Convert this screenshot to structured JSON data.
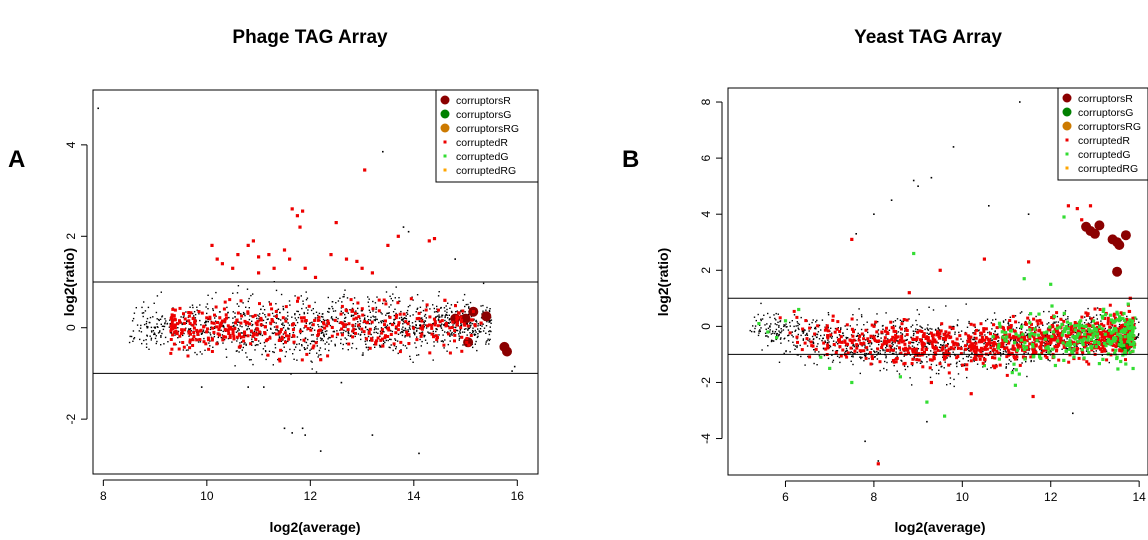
{
  "chart_data": [
    {
      "type": "scatter",
      "panel_label": "A",
      "title": "Phage TAG Array",
      "xlabel": "log2(average)",
      "ylabel": "log2(ratio)",
      "xlim": [
        7.8,
        16.4
      ],
      "ylim": [
        -3.2,
        5.2
      ],
      "xticks": [
        8,
        10,
        12,
        14,
        16
      ],
      "yticks": [
        -2,
        0,
        2,
        4
      ],
      "hlines": [
        1,
        -1
      ],
      "grid": false,
      "legend": {
        "position": "top-right",
        "entries": [
          {
            "label": "corruptorsR",
            "color": "#8b0000",
            "size": "large"
          },
          {
            "label": "corruptorsG",
            "color": "#008000",
            "size": "large"
          },
          {
            "label": "corruptorsRG",
            "color": "#cc7a00",
            "size": "large"
          },
          {
            "label": "corruptedR",
            "color": "#ee0000",
            "size": "small"
          },
          {
            "label": "corruptedG",
            "color": "#33dd33",
            "size": "small"
          },
          {
            "label": "corruptedRG",
            "color": "#ffa500",
            "size": "small"
          }
        ]
      },
      "cloud": {
        "x_range": [
          8.5,
          15.5
        ],
        "y_spread": 0.35,
        "y_trend": [
          [
            8.5,
            0.0
          ],
          [
            12,
            0.0
          ],
          [
            15.5,
            0.1
          ]
        ],
        "color": "#000000"
      },
      "series": [
        {
          "name": "corruptorsR",
          "points": [
            [
              14.8,
              0.2
            ],
            [
              15.0,
              0.2
            ],
            [
              15.15,
              0.35
            ],
            [
              15.4,
              0.25
            ],
            [
              15.05,
              -0.32
            ],
            [
              15.75,
              -0.42
            ],
            [
              15.8,
              -0.52
            ]
          ]
        },
        {
          "name": "corruptedR",
          "points": [
            [
              10.2,
              1.5
            ],
            [
              10.3,
              1.4
            ],
            [
              10.5,
              1.3
            ],
            [
              10.6,
              1.6
            ],
            [
              10.8,
              1.8
            ],
            [
              10.9,
              1.9
            ],
            [
              11.0,
              1.55
            ],
            [
              11.2,
              1.6
            ],
            [
              11.3,
              1.3
            ],
            [
              11.5,
              1.7
            ],
            [
              11.6,
              1.5
            ],
            [
              11.65,
              2.6
            ],
            [
              11.75,
              2.45
            ],
            [
              11.8,
              2.2
            ],
            [
              11.85,
              2.55
            ],
            [
              11.9,
              1.3
            ],
            [
              12.1,
              1.1
            ],
            [
              12.4,
              1.6
            ],
            [
              12.5,
              2.3
            ],
            [
              12.7,
              1.5
            ],
            [
              13.0,
              1.3
            ],
            [
              13.05,
              3.45
            ],
            [
              13.2,
              1.2
            ],
            [
              13.5,
              1.8
            ],
            [
              13.7,
              2.0
            ],
            [
              14.3,
              1.9
            ],
            [
              14.4,
              1.95
            ],
            [
              14.6,
              0.6
            ],
            [
              15.1,
              0.3
            ],
            [
              15.3,
              0.1
            ],
            [
              12.2,
              -0.7
            ],
            [
              13.4,
              -0.4
            ],
            [
              11.0,
              1.2
            ],
            [
              10.1,
              1.8
            ],
            [
              12.9,
              1.45
            ]
          ]
        },
        {
          "name": "black_points",
          "points": [
            [
              7.9,
              4.8
            ],
            [
              13.4,
              3.85
            ],
            [
              13.8,
              2.2
            ],
            [
              13.9,
              2.1
            ],
            [
              14.8,
              1.5
            ],
            [
              11.5,
              -2.2
            ],
            [
              11.65,
              -2.3
            ],
            [
              11.85,
              -2.2
            ],
            [
              11.9,
              -2.35
            ],
            [
              12.2,
              -2.7
            ],
            [
              13.2,
              -2.35
            ],
            [
              14.1,
              -2.75
            ],
            [
              15.9,
              -0.95
            ],
            [
              15.95,
              -0.85
            ],
            [
              9.9,
              -1.3
            ],
            [
              10.8,
              -1.3
            ],
            [
              11.1,
              -1.3
            ],
            [
              12.6,
              -1.2
            ]
          ]
        }
      ]
    },
    {
      "type": "scatter",
      "panel_label": "B",
      "title": "Yeast TAG Array",
      "xlabel": "log2(average)",
      "ylabel": "log2(ratio)",
      "xlim": [
        4.7,
        14.2
      ],
      "ylim": [
        -5.3,
        8.5
      ],
      "xticks": [
        6,
        8,
        10,
        12,
        14
      ],
      "yticks": [
        -4,
        -2,
        0,
        2,
        4,
        6,
        8
      ],
      "hlines": [
        1,
        -1
      ],
      "grid": false,
      "legend": {
        "position": "top-right",
        "entries": [
          {
            "label": "corruptorsR",
            "color": "#8b0000",
            "size": "large"
          },
          {
            "label": "corruptorsG",
            "color": "#008000",
            "size": "large"
          },
          {
            "label": "corruptorsRG",
            "color": "#cc7a00",
            "size": "large"
          },
          {
            "label": "corruptedR",
            "color": "#ee0000",
            "size": "small"
          },
          {
            "label": "corruptedG",
            "color": "#33dd33",
            "size": "small"
          },
          {
            "label": "corruptedRG",
            "color": "#ffa500",
            "size": "small"
          }
        ]
      },
      "cloud": {
        "x_range": [
          5.2,
          14.0
        ],
        "y_spread": 0.5,
        "y_trend": [
          [
            5.2,
            0.0
          ],
          [
            6.5,
            -0.35
          ],
          [
            8.0,
            -0.6
          ],
          [
            10.0,
            -0.75
          ],
          [
            12.0,
            -0.45
          ],
          [
            14.0,
            -0.2
          ]
        ],
        "color": "#000000"
      },
      "series": [
        {
          "name": "corruptorsR",
          "points": [
            [
              12.8,
              3.55
            ],
            [
              12.9,
              3.4
            ],
            [
              13.0,
              3.3
            ],
            [
              13.1,
              3.6
            ],
            [
              13.4,
              3.1
            ],
            [
              13.5,
              3.0
            ],
            [
              13.55,
              2.9
            ],
            [
              13.7,
              3.25
            ],
            [
              13.5,
              1.95
            ]
          ]
        },
        {
          "name": "corruptorsG",
          "points": [
            [
              13.6,
              -0.6
            ],
            [
              13.7,
              -0.75
            ]
          ]
        },
        {
          "name": "corruptedR",
          "points": [
            [
              7.5,
              3.1
            ],
            [
              8.1,
              -4.9
            ],
            [
              9.5,
              2.0
            ],
            [
              10.5,
              2.4
            ],
            [
              11.5,
              2.3
            ],
            [
              12.4,
              4.3
            ],
            [
              12.6,
              4.2
            ],
            [
              12.7,
              3.8
            ],
            [
              12.9,
              4.3
            ],
            [
              13.8,
              1.0
            ],
            [
              11.6,
              -2.5
            ],
            [
              10.2,
              -2.4
            ],
            [
              9.3,
              -2.0
            ],
            [
              8.8,
              1.2
            ]
          ]
        },
        {
          "name": "corruptedG",
          "points": [
            [
              5.4,
              0.1
            ],
            [
              5.6,
              -0.2
            ],
            [
              5.8,
              -0.4
            ],
            [
              6.0,
              0.2
            ],
            [
              6.3,
              0.6
            ],
            [
              6.8,
              -1.1
            ],
            [
              7.0,
              -1.5
            ],
            [
              7.5,
              -2.0
            ],
            [
              8.6,
              -1.8
            ],
            [
              8.9,
              2.6
            ],
            [
              9.2,
              -2.7
            ],
            [
              9.6,
              -3.2
            ],
            [
              10.5,
              -1.4
            ],
            [
              11.2,
              -2.1
            ],
            [
              12.0,
              1.5
            ],
            [
              12.3,
              3.9
            ],
            [
              11.4,
              1.7
            ],
            [
              13.9,
              0.3
            ],
            [
              13.5,
              -1.1
            ]
          ]
        },
        {
          "name": "black_points",
          "points": [
            [
              11.3,
              8.0
            ],
            [
              9.8,
              6.4
            ],
            [
              9.3,
              5.3
            ],
            [
              9.0,
              5.0
            ],
            [
              8.9,
              5.2
            ],
            [
              8.0,
              4.0
            ],
            [
              8.4,
              4.5
            ],
            [
              7.6,
              3.3
            ],
            [
              10.6,
              4.3
            ],
            [
              11.5,
              4.0
            ],
            [
              8.1,
              -4.8
            ],
            [
              7.8,
              -4.1
            ],
            [
              12.5,
              -3.1
            ],
            [
              9.2,
              -3.4
            ]
          ]
        }
      ]
    }
  ]
}
